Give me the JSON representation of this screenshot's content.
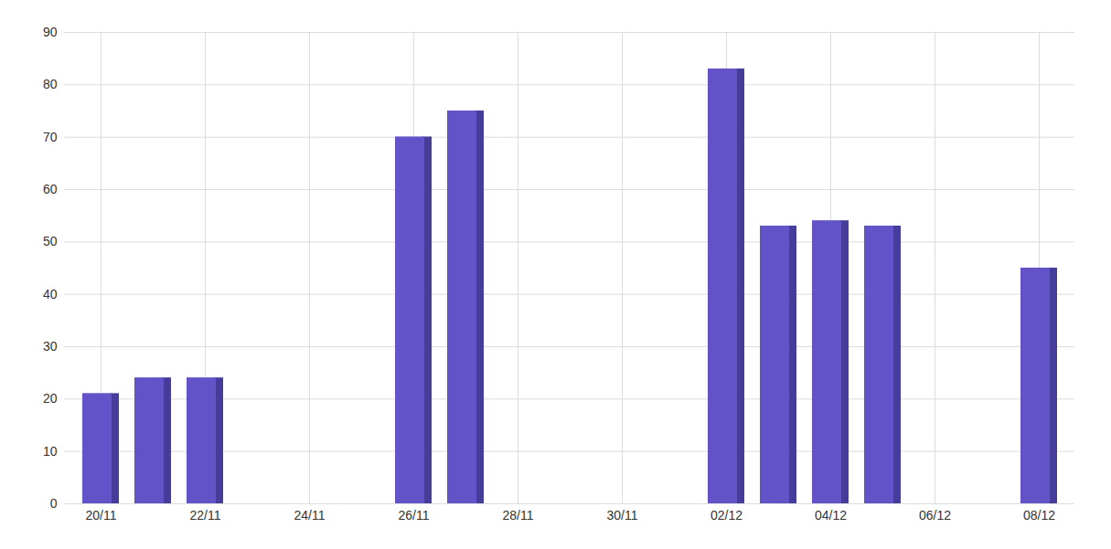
{
  "chart_data": {
    "type": "bar",
    "categories": [
      "20/11",
      null,
      "22/11",
      null,
      "24/11",
      null,
      "26/11",
      null,
      "28/11",
      null,
      "30/11",
      null,
      "02/12",
      null,
      "04/12",
      null,
      "06/12",
      null,
      "08/12"
    ],
    "values": [
      21,
      24,
      24,
      null,
      null,
      null,
      70,
      75,
      null,
      null,
      null,
      null,
      83,
      53,
      54,
      53,
      null,
      null,
      45
    ],
    "color": "#6353c9",
    "ylim": [
      0,
      90
    ],
    "yticks": [
      0,
      10,
      20,
      30,
      40,
      50,
      60,
      70,
      80,
      90
    ],
    "grid": true
  }
}
